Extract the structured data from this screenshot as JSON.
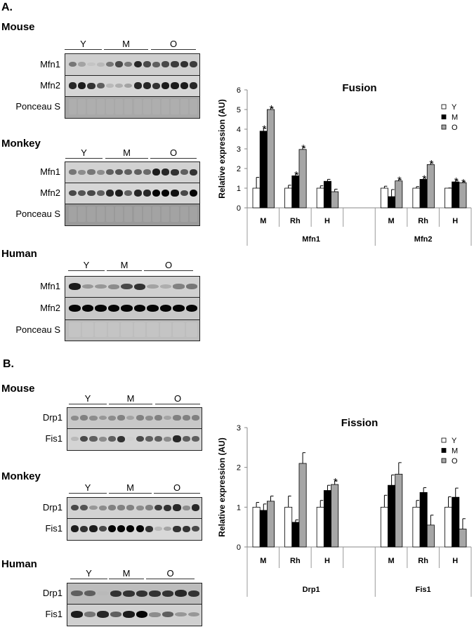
{
  "panels": {
    "a": "A.",
    "b": "B."
  },
  "groups": [
    "Y",
    "M",
    "O"
  ],
  "blots_a": [
    {
      "species": "Mouse",
      "rows": [
        {
          "label": "Mfn1",
          "bg": "#cfcfcf",
          "intensity": [
            0.5,
            0.3,
            0.15,
            0.2,
            0.5,
            0.7,
            0.5,
            0.85,
            0.7,
            0.6,
            0.7,
            0.75,
            0.8,
            0.75
          ]
        },
        {
          "label": "Mfn2",
          "bg": "#d6d6d6",
          "intensity": [
            0.85,
            0.9,
            0.8,
            0.6,
            0.2,
            0.25,
            0.3,
            0.85,
            0.85,
            0.8,
            0.9,
            0.9,
            0.9,
            0.85
          ]
        },
        {
          "label": "Ponceau S",
          "bg": "#a8a8a8",
          "intensity": [
            0.25,
            0.25,
            0.25,
            0.25,
            0.25,
            0.25,
            0.25,
            0.25,
            0.25,
            0.25,
            0.25,
            0.25,
            0.25,
            0.25
          ]
        }
      ]
    },
    {
      "species": "Monkey",
      "rows": [
        {
          "label": "Mfn1",
          "bg": "#d2d2d2",
          "intensity": [
            0.5,
            0.4,
            0.5,
            0.4,
            0.6,
            0.65,
            0.6,
            0.6,
            0.55,
            0.9,
            0.85,
            0.8,
            0.6,
            0.8
          ]
        },
        {
          "label": "Mfn2",
          "bg": "#d6d6d6",
          "intensity": [
            0.7,
            0.65,
            0.7,
            0.6,
            0.85,
            0.9,
            0.6,
            0.85,
            0.85,
            1,
            1,
            0.95,
            0.7,
            1
          ]
        },
        {
          "label": "Ponceau S",
          "bg": "#9a9a9a",
          "intensity": [
            0.3,
            0.3,
            0.3,
            0.3,
            0.3,
            0.3,
            0.3,
            0.3,
            0.3,
            0.3,
            0.3,
            0.3,
            0.3,
            0.3
          ]
        }
      ]
    },
    {
      "species": "Human",
      "rows": [
        {
          "label": "Mfn1",
          "bg": "#d0d0d0",
          "intensity": [
            0.9,
            0.35,
            0.35,
            0.4,
            0.7,
            0.8,
            0.3,
            0.25,
            0.45,
            0.5
          ]
        },
        {
          "label": "Mfn2",
          "bg": "#c8c8c8",
          "intensity": [
            1,
            1,
            1,
            1,
            1,
            1,
            1,
            1,
            1,
            1
          ]
        },
        {
          "label": "Ponceau S",
          "bg": "#bdbdbd",
          "intensity": [
            0.15,
            0.15,
            0.15,
            0.15,
            0.15,
            0.15,
            0.15,
            0.15,
            0.15,
            0.15
          ]
        }
      ]
    }
  ],
  "blots_b": [
    {
      "species": "Mouse",
      "rows": [
        {
          "label": "Drp1",
          "bg": "#c8c8c8",
          "intensity": [
            0.4,
            0.45,
            0.4,
            0.35,
            0.4,
            0.45,
            0.3,
            0.45,
            0.4,
            0.45,
            0.3,
            0.45,
            0.45,
            0.45
          ]
        },
        {
          "label": "Fis1",
          "bg": "#d4d4d4",
          "intensity": [
            0.2,
            0.7,
            0.6,
            0.4,
            0.6,
            0.8,
            0.1,
            0.7,
            0.6,
            0.6,
            0.4,
            0.85,
            0.6,
            0.6
          ]
        }
      ]
    },
    {
      "species": "Monkey",
      "rows": [
        {
          "label": "Drp1",
          "bg": "#d2d2d2",
          "intensity": [
            0.7,
            0.65,
            0.35,
            0.4,
            0.45,
            0.45,
            0.45,
            0.4,
            0.45,
            0.75,
            0.8,
            0.85,
            0.4,
            0.85
          ]
        },
        {
          "label": "Fis1",
          "bg": "#d8d8d8",
          "intensity": [
            0.9,
            0.8,
            0.9,
            0.7,
            1,
            1,
            1,
            1,
            0.8,
            0.2,
            0.3,
            0.8,
            0.8,
            0.7
          ]
        }
      ]
    },
    {
      "species": "Human",
      "rows": [
        {
          "label": "Drp1",
          "bg": "#bcbcbc",
          "intensity": [
            0.6,
            0.6,
            0.2,
            0.8,
            0.8,
            0.8,
            0.8,
            0.8,
            0.85,
            0.8
          ]
        },
        {
          "label": "Fis1",
          "bg": "#d0d0d0",
          "intensity": [
            0.9,
            0.5,
            0.85,
            0.6,
            0.9,
            1,
            0.4,
            0.6,
            0.35,
            0.35
          ]
        }
      ]
    }
  ],
  "chart_data": [
    {
      "type": "bar",
      "title": "Fusion",
      "ylabel": "Relative expression (AU)",
      "xlabel": "",
      "ylim": [
        0,
        6
      ],
      "yticks": [
        "0",
        "1",
        "2",
        "3",
        "4",
        "5",
        "6"
      ],
      "legend": "top-right",
      "legend_entries": [
        "Y",
        "M",
        "O"
      ],
      "colors": {
        "Y": "#ffffff",
        "M": "#000000",
        "O": "#a6a6a6"
      },
      "groups": [
        "Mfn1",
        "Mfn2"
      ],
      "categories": [
        "M",
        "Rh",
        "H",
        "",
        "M",
        "Rh",
        "H"
      ],
      "series": [
        {
          "name": "Y",
          "values": [
            1,
            1,
            1,
            null,
            1,
            1,
            1
          ],
          "errors": [
            0.55,
            0.15,
            0.12,
            null,
            0.1,
            0.08,
            0.01
          ],
          "sig": [
            false,
            false,
            false,
            false,
            false,
            false,
            false
          ]
        },
        {
          "name": "M",
          "values": [
            3.9,
            1.63,
            1.35,
            null,
            0.57,
            1.45,
            1.32
          ],
          "errors": [
            0.15,
            0.09,
            0.1,
            null,
            0.36,
            0.07,
            0.08
          ],
          "sig": [
            true,
            true,
            false,
            false,
            false,
            true,
            true
          ]
        },
        {
          "name": "O",
          "values": [
            5.0,
            2.97,
            0.82,
            null,
            1.37,
            2.2,
            1.28
          ],
          "errors": [
            0.08,
            0.1,
            0.13,
            null,
            0.08,
            0.08,
            0.05
          ],
          "sig": [
            true,
            true,
            false,
            false,
            true,
            true,
            true
          ]
        }
      ],
      "sig_marker": "*"
    },
    {
      "type": "bar",
      "title": "Fission",
      "ylabel": "Relative expression (AU)",
      "xlabel": "",
      "ylim": [
        0,
        3
      ],
      "yticks": [
        "0",
        "1",
        "2",
        "3"
      ],
      "legend": "top-right",
      "legend_entries": [
        "Y",
        "M",
        "O"
      ],
      "colors": {
        "Y": "#ffffff",
        "M": "#000000",
        "O": "#a6a6a6"
      },
      "groups": [
        "Drp1",
        "Fis1"
      ],
      "categories": [
        "M",
        "Rh",
        "H",
        "",
        "M",
        "Rh",
        "H"
      ],
      "series": [
        {
          "name": "Y",
          "values": [
            1,
            1,
            1,
            null,
            1,
            1,
            1
          ],
          "errors": [
            0.12,
            0.28,
            0.17,
            null,
            0.3,
            0.17,
            0.26
          ],
          "sig": [
            false,
            false,
            false,
            false,
            false,
            false,
            false
          ]
        },
        {
          "name": "M",
          "values": [
            0.92,
            0.62,
            1.42,
            null,
            1.55,
            1.37,
            1.25
          ],
          "errors": [
            0.16,
            0.06,
            0.13,
            null,
            0.26,
            0.12,
            0.23
          ],
          "sig": [
            false,
            false,
            false,
            false,
            false,
            false,
            false
          ]
        },
        {
          "name": "O",
          "values": [
            1.15,
            2.1,
            1.57,
            null,
            1.83,
            0.55,
            0.45
          ],
          "errors": [
            0.13,
            0.27,
            0.09,
            null,
            0.29,
            0.25,
            0.26
          ],
          "sig": [
            false,
            false,
            true,
            false,
            false,
            false,
            false
          ]
        }
      ],
      "sig_marker": "*"
    }
  ]
}
